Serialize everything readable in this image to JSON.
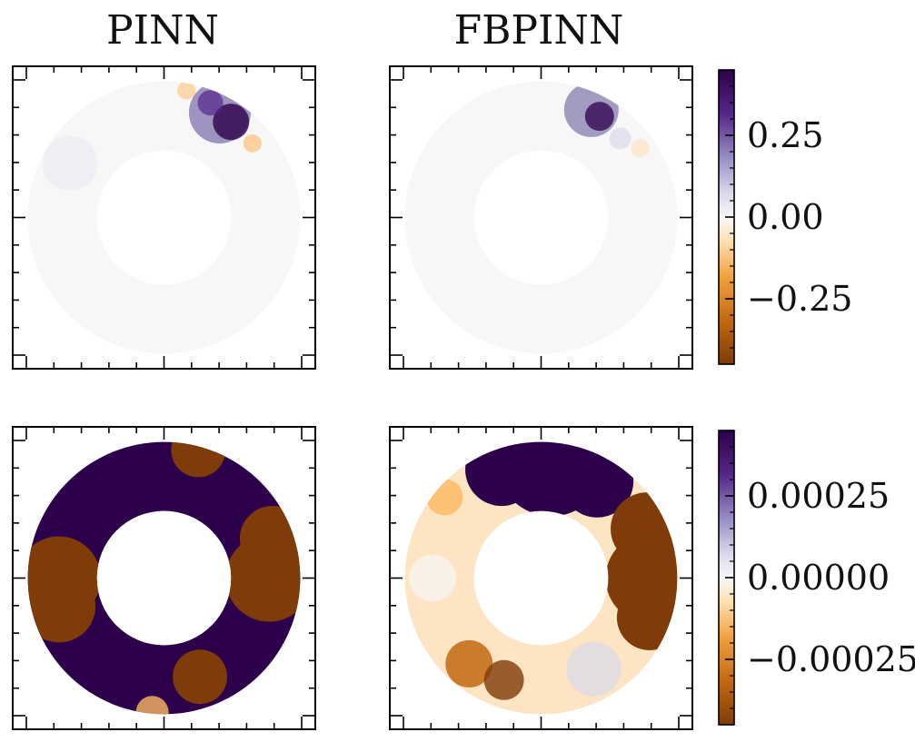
{
  "titles": {
    "left": "PINN",
    "right": "FBPINN"
  },
  "chart_data": [
    {
      "type": "heatmap",
      "title": "PINN",
      "row": 1,
      "shape": "annulus",
      "description_of_values": "near-zero everywhere; strong positive patch in upper region with small negative speckles",
      "colormap": "PuOr",
      "clim": [
        -0.45,
        0.45
      ]
    },
    {
      "type": "heatmap",
      "title": "FBPINN",
      "row": 1,
      "shape": "annulus",
      "colormap": "PuOr",
      "clim": [
        -0.45,
        0.45
      ]
    },
    {
      "type": "heatmap",
      "title": "",
      "row": 2,
      "shape": "annulus",
      "colormap": "PuOr",
      "clim": [
        -0.00045,
        0.00045
      ]
    },
    {
      "type": "heatmap",
      "title": "",
      "row": 2,
      "shape": "annulus",
      "colormap": "PuOr",
      "clim": [
        -0.00045,
        0.00045
      ]
    }
  ],
  "colorbars": [
    {
      "ticks": [
        "0.25",
        "0.00",
        "−0.25"
      ],
      "values": [
        0.25,
        0.0,
        -0.25
      ],
      "range": [
        -0.45,
        0.45
      ]
    },
    {
      "ticks": [
        "0.00025",
        "0.00000",
        "−0.00025"
      ],
      "values": [
        0.00025,
        0.0,
        -0.00025
      ],
      "range": [
        -0.00045,
        0.00045
      ]
    }
  ],
  "colors": {
    "purple_dark": "#2d004b",
    "purple_mid": "#8073ac",
    "neutral": "#f7f7f7",
    "orange_mid": "#fdb863",
    "brown_dark": "#7f3b08"
  }
}
